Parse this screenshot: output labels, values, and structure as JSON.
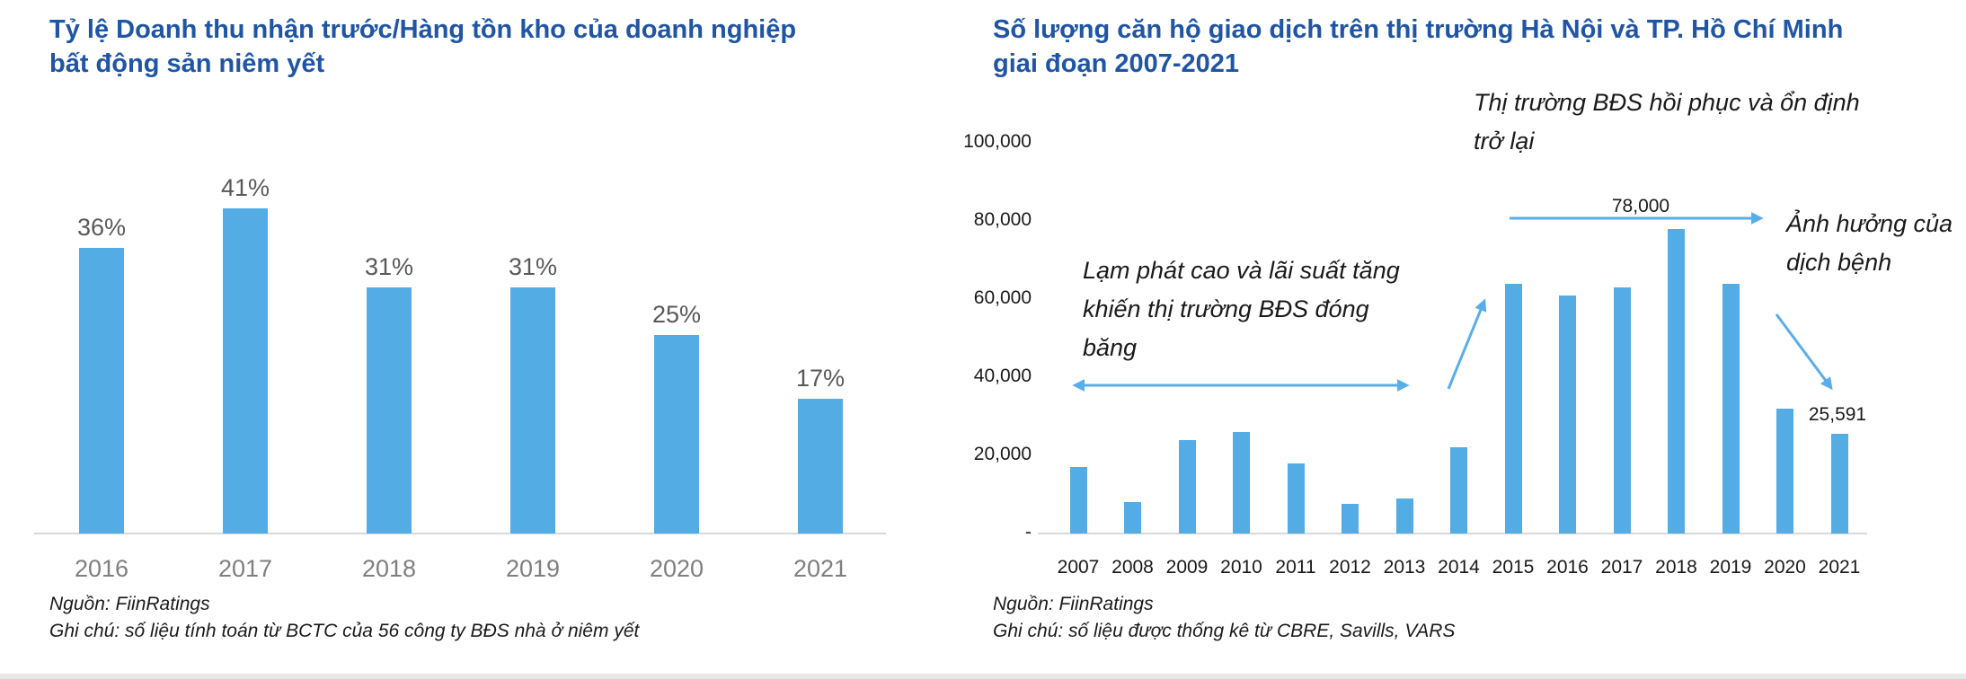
{
  "colors": {
    "bar": "#54ACE5",
    "arrow": "#5AAEE8",
    "title_blue": "#1F55A4",
    "axis_gray": "#D9D9D9",
    "value_label_gray": "#595959",
    "year_gray": "#7F7F7F",
    "text_black": "#1A1A1A"
  },
  "chart_data": [
    {
      "type": "bar",
      "title": "Tỷ lệ Doanh thu nhận trước/Hàng tồn kho của doanh nghiệp\nbất động sản niêm yết",
      "categories": [
        "2016",
        "2017",
        "2018",
        "2019",
        "2020",
        "2021"
      ],
      "values": [
        36,
        41,
        31,
        31,
        25,
        17
      ],
      "data_labels": [
        "36%",
        "41%",
        "31%",
        "31%",
        "25%",
        "17%"
      ],
      "unit": "percent",
      "ylim": [
        0,
        45
      ],
      "grid": false,
      "legend": "none",
      "source": "Nguồn: FiinRatings",
      "note": "Ghi chú: số liệu tính toán từ BCTC của 56 công ty BĐS nhà ở niêm yết"
    },
    {
      "type": "bar",
      "title": "Số lượng căn hộ giao dịch trên thị trường Hà Nội và TP. Hồ Chí Minh\ngiai đoạn 2007-2021",
      "categories": [
        "2007",
        "2008",
        "2009",
        "2010",
        "2011",
        "2012",
        "2013",
        "2014",
        "2015",
        "2016",
        "2017",
        "2018",
        "2019",
        "2020",
        "2021"
      ],
      "values": [
        17000,
        8000,
        24000,
        26000,
        18000,
        7500,
        9000,
        22000,
        64000,
        61000,
        63000,
        78000,
        64000,
        32000,
        25591
      ],
      "ylim": [
        0,
        100000
      ],
      "ytick_values": [
        100000,
        80000,
        60000,
        40000,
        20000,
        0
      ],
      "ytick_labels": [
        "100,000",
        "80,000",
        "60,000",
        "40,000",
        "20,000",
        "-"
      ],
      "grid": false,
      "legend": "none",
      "annotations": {
        "freeze": "Lạm phát cao và lãi suất tăng\nkhiến thị trường BĐS đóng\nbăng",
        "recovery": "Thị trường BĐS hồi phục và ổn định\ntrở lại",
        "pandemic": "Ảnh hưởng của\ndịch bệnh",
        "peak_label": "78,000",
        "last_label": "25,591"
      },
      "source": "Nguồn: FiinRatings",
      "note": "Ghi chú: số liệu được thống kê từ CBRE, Savills, VARS"
    }
  ]
}
